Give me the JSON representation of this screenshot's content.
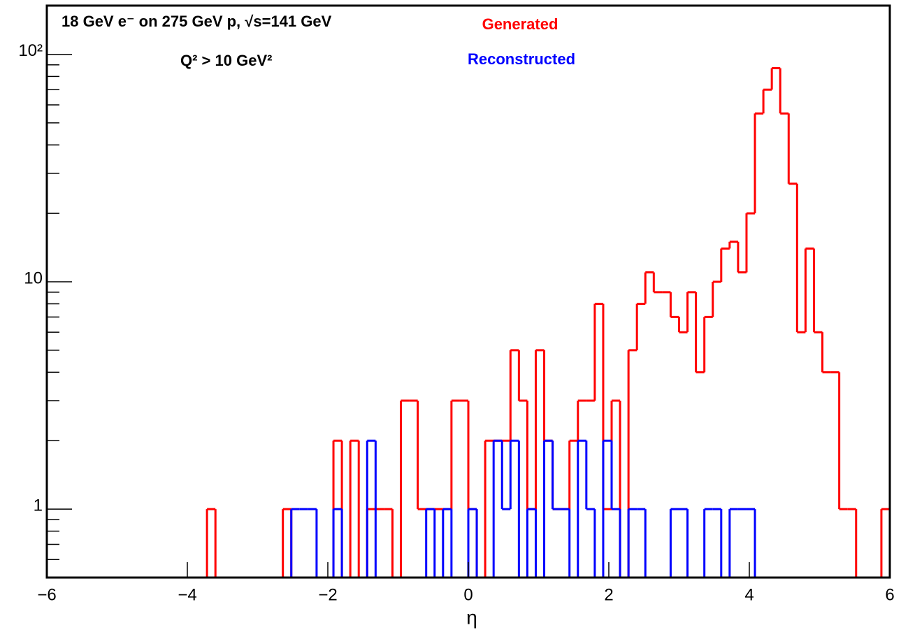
{
  "chart_data": {
    "type": "histogram",
    "annotations": [
      "18 GeV e⁻ on 275 GeV p,  √s=141 GeV",
      "Q² > 10 GeV²"
    ],
    "x_label": "η",
    "log_y": true,
    "bins": [
      -6,
      -5.88,
      -5.76,
      -5.64,
      -5.52,
      -5.4,
      -5.28,
      -5.16,
      -5.04,
      -4.92,
      -4.8,
      -4.68,
      -4.56,
      -4.44,
      -4.32,
      -4.2,
      -4.08,
      -3.96,
      -3.84,
      -3.72,
      -3.6,
      -3.48,
      -3.36,
      -3.24,
      -3.12,
      -3,
      -2.88,
      -2.76,
      -2.64,
      -2.52,
      -2.4,
      -2.28,
      -2.16,
      -2.04,
      -1.92,
      -1.8,
      -1.68,
      -1.56,
      -1.44,
      -1.32,
      -1.2,
      -1.08,
      -0.96,
      -0.84,
      -0.72,
      -0.6,
      -0.48,
      -0.36,
      -0.24,
      -0.12,
      0,
      0.12,
      0.24,
      0.36,
      0.48,
      0.6,
      0.72,
      0.84,
      0.96,
      1.08,
      1.2,
      1.32,
      1.44,
      1.56,
      1.68,
      1.8,
      1.92,
      2.04,
      2.16,
      2.28,
      2.4,
      2.52,
      2.64,
      2.76,
      2.88,
      3,
      3.12,
      3.24,
      3.36,
      3.48,
      3.6,
      3.72,
      3.84,
      3.96,
      4.08,
      4.2,
      4.32,
      4.44,
      4.56,
      4.68,
      4.8,
      4.92,
      5.04,
      5.16,
      5.28,
      5.4,
      5.52,
      5.64,
      5.76,
      5.88,
      6
    ],
    "series": [
      {
        "name": "Generated",
        "color": "#ff0000",
        "values": [
          0,
          0,
          0,
          0,
          0,
          0,
          0,
          0,
          0,
          0,
          0,
          0,
          0,
          0,
          0,
          0,
          0,
          0,
          0,
          1,
          0,
          0,
          0,
          0,
          0,
          0,
          0,
          0,
          1,
          0,
          0,
          0,
          0,
          0,
          2,
          0,
          2,
          0,
          1,
          1,
          1,
          0,
          3,
          3,
          1,
          1,
          1,
          1,
          3,
          3,
          1,
          0,
          2,
          2,
          2,
          5,
          3,
          1,
          5,
          2,
          1,
          1,
          2,
          3,
          3,
          8,
          1,
          3,
          0,
          5,
          8,
          11,
          9,
          9,
          7,
          6,
          9,
          4,
          7,
          10,
          14,
          15,
          11,
          20,
          55,
          70,
          87,
          55,
          27,
          6,
          14,
          6,
          4,
          4,
          1,
          1,
          0,
          0,
          0,
          1
        ]
      },
      {
        "name": "Reconstructed",
        "color": "#0000ff",
        "values": [
          0,
          0,
          0,
          0,
          0,
          0,
          0,
          0,
          0,
          0,
          0,
          0,
          0,
          0,
          0,
          0,
          0,
          0,
          0,
          0,
          0,
          0,
          0,
          0,
          0,
          0,
          0,
          0,
          0,
          1,
          1,
          1,
          0,
          0,
          1,
          0,
          0,
          0,
          2,
          0,
          0,
          0,
          0,
          0,
          0,
          1,
          0,
          1,
          0,
          0,
          1,
          0,
          0,
          2,
          1,
          2,
          0,
          1,
          0,
          2,
          1,
          1,
          0,
          2,
          1,
          0,
          2,
          1,
          0,
          1,
          1,
          0,
          0,
          0,
          1,
          1,
          0,
          0,
          1,
          1,
          0,
          1,
          1,
          1,
          0,
          0,
          0,
          0,
          0,
          0,
          0,
          0,
          0,
          0,
          0,
          0,
          0,
          0,
          0,
          0
        ]
      }
    ],
    "xlim": [
      -6,
      6
    ],
    "xticks": [
      {
        "value": -6,
        "label": "−6"
      },
      {
        "value": -4,
        "label": "−4"
      },
      {
        "value": -2,
        "label": "−2"
      },
      0,
      2,
      4,
      6
    ],
    "ylim": [
      0.5,
      164
    ],
    "yticks": [
      1,
      10,
      {
        "value": 100,
        "label": "10²"
      }
    ],
    "yminorticks": [
      0.6,
      0.7,
      0.8,
      0.9,
      2,
      3,
      4,
      5,
      6,
      7,
      8,
      9,
      20,
      30,
      40,
      50,
      60,
      70,
      80,
      90
    ]
  }
}
